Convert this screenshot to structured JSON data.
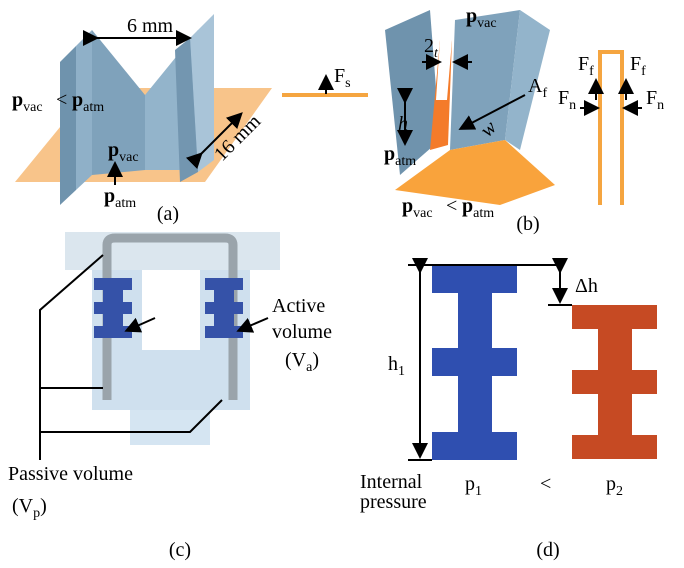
{
  "panel_a": {
    "label": "(a)",
    "width": "6 mm",
    "length": "16 mm",
    "relation": {
      "left": {
        "base": "p",
        "sub": "vac"
      },
      "op": "<",
      "right": {
        "base": "p",
        "sub": "atm"
      }
    },
    "inside": {
      "base": "p",
      "sub": "vac"
    },
    "outside": {
      "base": "p",
      "sub": "atm"
    },
    "force": {
      "base": "F",
      "sub": "s"
    }
  },
  "panel_b": {
    "label": "(b)",
    "top": {
      "base": "p",
      "sub": "vac"
    },
    "thickness": {
      "base": "2",
      "sub": "t"
    },
    "area": {
      "base": "A",
      "sub": "f"
    },
    "height": "h",
    "width": "w",
    "outside": {
      "base": "p",
      "sub": "atm"
    },
    "relation": {
      "left": {
        "base": "p",
        "sub": "vac"
      },
      "op": "<",
      "right": {
        "base": "p",
        "sub": "atm"
      }
    },
    "friction_left": {
      "base": "F",
      "sub": "f"
    },
    "friction_right": {
      "base": "F",
      "sub": "f"
    },
    "normal_left": {
      "base": "F",
      "sub": "n"
    },
    "normal_right": {
      "base": "F",
      "sub": "n"
    }
  },
  "panel_c": {
    "label": "(c)",
    "active": [
      "Active",
      "volume"
    ],
    "active_symbol": {
      "base": "(V",
      "sub": "a",
      "end": ")"
    },
    "passive": "Passive volume",
    "passive_symbol": {
      "base": "(V",
      "sub": "p",
      "end": ")"
    }
  },
  "panel_d": {
    "label": "(d)",
    "height": {
      "base": "h",
      "sub": "1"
    },
    "delta": "Δh",
    "internal": [
      "Internal",
      "pressure"
    ],
    "p1": {
      "base": "p",
      "sub": "1"
    },
    "op": "<",
    "p2": {
      "base": "p",
      "sub": "2"
    }
  }
}
